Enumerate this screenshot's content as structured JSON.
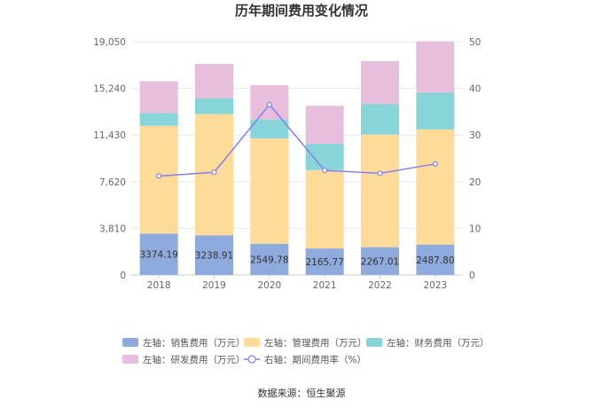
{
  "chart_data": {
    "type": "bar",
    "stacked": true,
    "title": "历年期间费用变化情况",
    "categories": [
      "2018",
      "2019",
      "2020",
      "2021",
      "2022",
      "2023"
    ],
    "left_axis": {
      "min": 0,
      "max": 19050,
      "ticks": [
        "0",
        "3,810",
        "7,620",
        "11,430",
        "15,240",
        "19,050"
      ],
      "tick_values": [
        0,
        3810,
        7620,
        11430,
        15240,
        19050
      ]
    },
    "right_axis": {
      "min": 0,
      "max": 50,
      "ticks": [
        "0",
        "10",
        "20",
        "30",
        "40",
        "50"
      ],
      "tick_values": [
        0,
        10,
        20,
        30,
        40,
        50
      ]
    },
    "series": [
      {
        "name": "左轴：销售费用（万元）",
        "axis": "left",
        "color": "#8faadc",
        "values": [
          3374.19,
          3238.91,
          2549.78,
          2165.77,
          2267.01,
          2487.8
        ],
        "labels": [
          "3374.19",
          "3238.91",
          "2549.78",
          "2165.77",
          "2267.01",
          "2487.80"
        ]
      },
      {
        "name": "左轴：管理费用（万元）",
        "axis": "left",
        "color": "#ffdb9a",
        "values": [
          8800,
          9900,
          8600,
          6400,
          9200,
          9400
        ]
      },
      {
        "name": "左轴：财务费用（万元）",
        "axis": "left",
        "color": "#88d5d9",
        "values": [
          1050,
          1300,
          1550,
          2150,
          2500,
          3000
        ]
      },
      {
        "name": "左轴：研发费用（万元）",
        "axis": "left",
        "color": "#e8bedd",
        "values": [
          2600,
          2800,
          2800,
          3100,
          3500,
          4200
        ]
      },
      {
        "name": "右轴：期间费用率（%）",
        "axis": "right",
        "type": "line",
        "color": "#8080f0",
        "values": [
          21.2,
          22.0,
          36.5,
          22.4,
          21.8,
          23.8
        ]
      }
    ],
    "legend_position": "bottom",
    "source": "数据来源：恒生聚源"
  }
}
